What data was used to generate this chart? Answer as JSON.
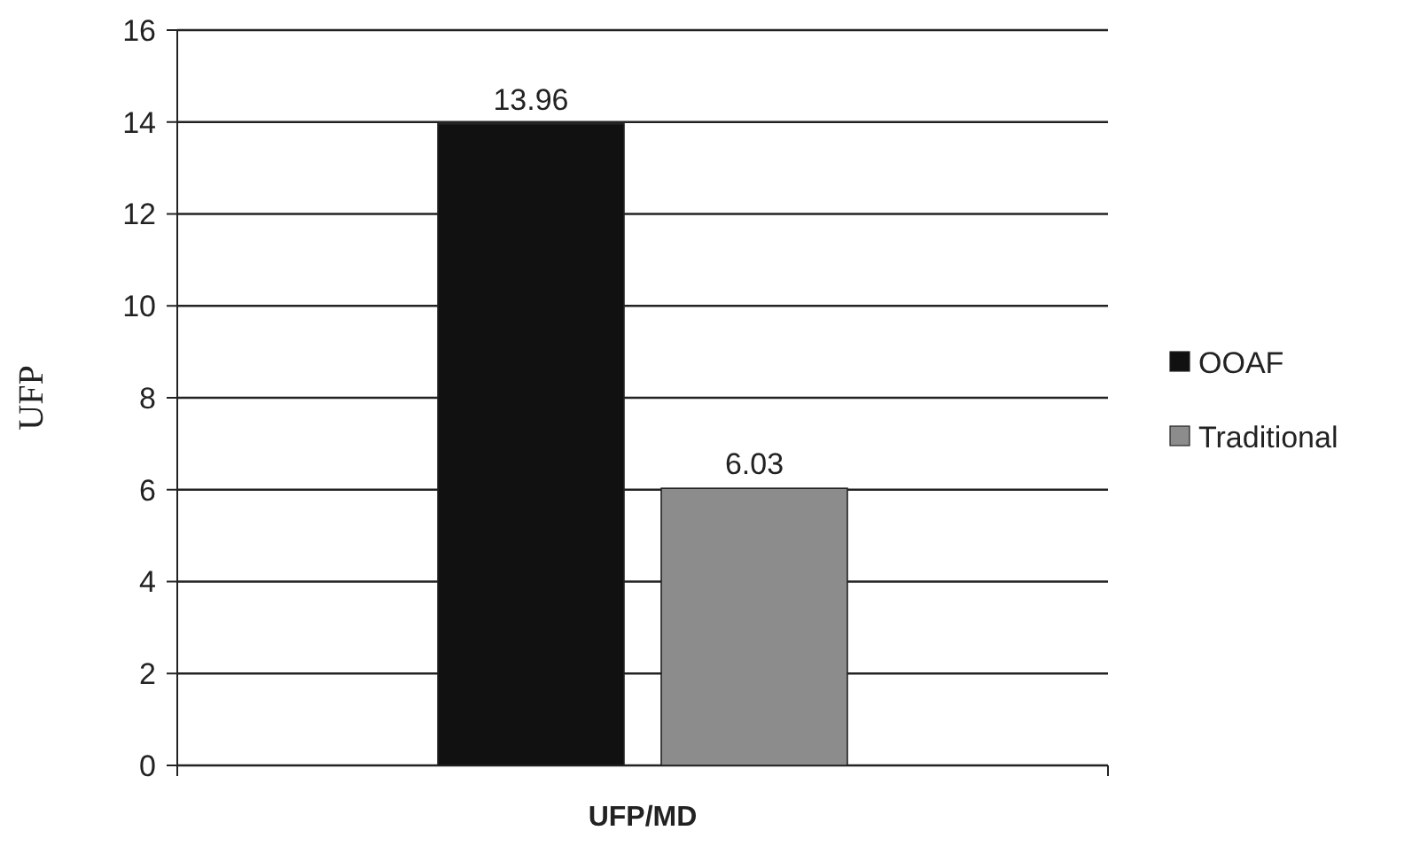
{
  "chart_data": {
    "type": "bar",
    "categories": [
      "UFP/MD"
    ],
    "ylabel": "UFP",
    "ylim": [
      0,
      16
    ],
    "yticks": [
      0,
      2,
      4,
      6,
      8,
      10,
      12,
      14,
      16
    ],
    "grid": "y",
    "legend": "right",
    "data_labels": true,
    "series": [
      {
        "name": "OOAF",
        "color": "#111111",
        "values": [
          13.96
        ]
      },
      {
        "name": "Traditional",
        "color": "#8c8c8c",
        "values": [
          6.03
        ]
      }
    ]
  }
}
